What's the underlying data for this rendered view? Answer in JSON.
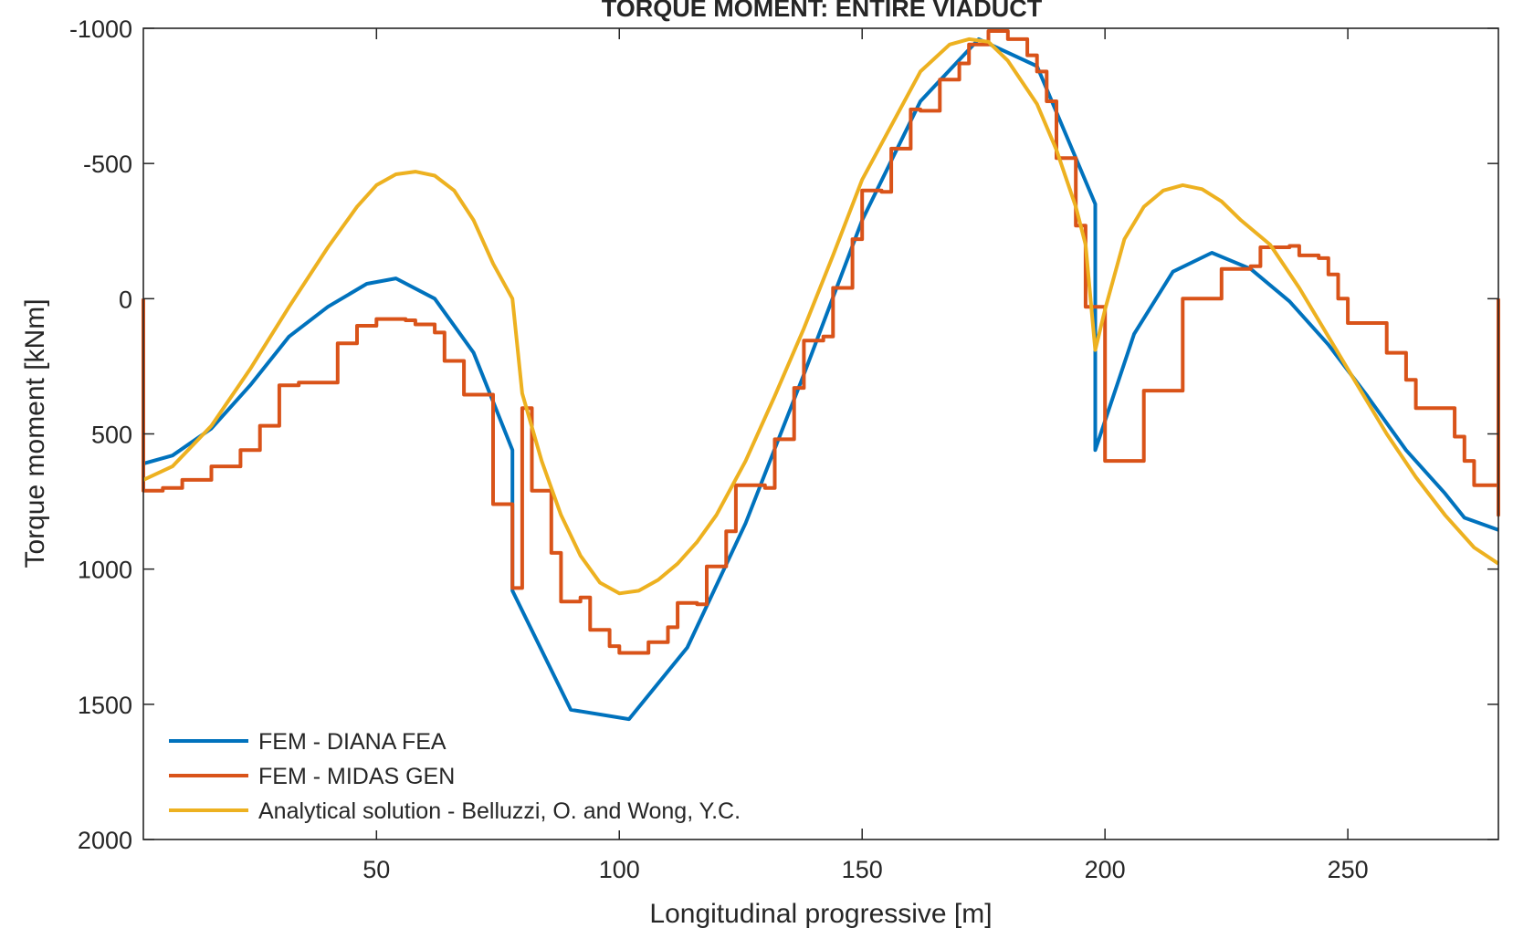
{
  "chart_data": {
    "type": "line",
    "title": "TORQUE MOMENT: ENTIRE VIADUCT",
    "xlabel": "Longitudinal progressive [m]",
    "ylabel": "Torque moment [kNm]",
    "xlim": [
      2,
      281
    ],
    "ylim": [
      2000,
      -1000
    ],
    "y_axis_reversed": true,
    "xticks": [
      50,
      100,
      150,
      200,
      250
    ],
    "yticks": [
      -1000,
      -500,
      0,
      500,
      1000,
      1500,
      2000
    ],
    "grid": false,
    "legend_position": "bottom-left",
    "series": [
      {
        "name": "FEM - DIANA FEA",
        "color": "#0072BD",
        "style": "polyline",
        "points": [
          [
            2,
            610
          ],
          [
            8,
            580
          ],
          [
            16,
            480
          ],
          [
            24,
            320
          ],
          [
            32,
            140
          ],
          [
            40,
            30
          ],
          [
            48,
            -55
          ],
          [
            54,
            -75
          ],
          [
            62,
            0
          ],
          [
            70,
            200
          ],
          [
            78,
            560
          ],
          [
            78,
            1080
          ],
          [
            90,
            1520
          ],
          [
            102,
            1555
          ],
          [
            114,
            1290
          ],
          [
            126,
            830
          ],
          [
            138,
            280
          ],
          [
            150,
            -290
          ],
          [
            162,
            -730
          ],
          [
            174,
            -960
          ],
          [
            186,
            -860
          ],
          [
            198,
            -350
          ],
          [
            198,
            560
          ],
          [
            206,
            130
          ],
          [
            214,
            -100
          ],
          [
            222,
            -170
          ],
          [
            230,
            -110
          ],
          [
            238,
            10
          ],
          [
            246,
            170
          ],
          [
            254,
            360
          ],
          [
            262,
            560
          ],
          [
            270,
            720
          ],
          [
            274,
            810
          ],
          [
            281,
            855
          ]
        ]
      },
      {
        "name": "FEM - MIDAS GEN",
        "color": "#D95319",
        "style": "step",
        "start": [
          2,
          0
        ],
        "steps": [
          [
            2,
            710
          ],
          [
            6,
            700
          ],
          [
            10,
            670
          ],
          [
            16,
            620
          ],
          [
            22,
            560
          ],
          [
            26,
            470
          ],
          [
            30,
            320
          ],
          [
            34,
            310
          ],
          [
            42,
            165
          ],
          [
            46,
            100
          ],
          [
            50,
            75
          ],
          [
            56,
            80
          ],
          [
            58,
            95
          ],
          [
            62,
            125
          ],
          [
            64,
            230
          ],
          [
            68,
            355
          ],
          [
            74,
            760
          ],
          [
            78,
            1070
          ],
          [
            80,
            405
          ],
          [
            82,
            710
          ],
          [
            86,
            940
          ],
          [
            88,
            1120
          ],
          [
            92,
            1105
          ],
          [
            94,
            1225
          ],
          [
            98,
            1285
          ],
          [
            100,
            1310
          ],
          [
            106,
            1270
          ],
          [
            110,
            1215
          ],
          [
            112,
            1125
          ],
          [
            116,
            1130
          ],
          [
            118,
            990
          ],
          [
            122,
            860
          ],
          [
            124,
            690
          ],
          [
            130,
            700
          ],
          [
            132,
            520
          ],
          [
            136,
            330
          ],
          [
            138,
            155
          ],
          [
            142,
            140
          ],
          [
            144,
            -40
          ],
          [
            148,
            -220
          ],
          [
            150,
            -400
          ],
          [
            154,
            -395
          ],
          [
            156,
            -555
          ],
          [
            160,
            -700
          ],
          [
            162,
            -695
          ],
          [
            166,
            -810
          ],
          [
            170,
            -870
          ],
          [
            172,
            -940
          ],
          [
            176,
            -990
          ],
          [
            180,
            -960
          ],
          [
            184,
            -900
          ],
          [
            186,
            -840
          ],
          [
            188,
            -730
          ],
          [
            190,
            -520
          ],
          [
            194,
            -270
          ],
          [
            196,
            30
          ],
          [
            198,
            30
          ],
          [
            200,
            600
          ],
          [
            206,
            600
          ],
          [
            208,
            340
          ],
          [
            214,
            340
          ],
          [
            216,
            0
          ],
          [
            222,
            0
          ],
          [
            224,
            -110
          ],
          [
            230,
            -120
          ],
          [
            232,
            -190
          ],
          [
            238,
            -195
          ],
          [
            240,
            -160
          ],
          [
            244,
            -150
          ],
          [
            246,
            -90
          ],
          [
            248,
            0
          ],
          [
            250,
            90
          ],
          [
            256,
            90
          ],
          [
            258,
            200
          ],
          [
            262,
            300
          ],
          [
            264,
            405
          ],
          [
            270,
            405
          ],
          [
            272,
            510
          ],
          [
            274,
            600
          ],
          [
            276,
            690
          ],
          [
            280,
            690
          ],
          [
            282,
            740
          ],
          [
            286,
            780
          ],
          [
            288,
            800
          ],
          [
            290,
            800
          ]
        ],
        "end": [
          290,
          0
        ]
      },
      {
        "name": "Analytical solution - Belluzzi, O. and Wong, Y.C.",
        "color": "#EDB120",
        "style": "line",
        "points": [
          [
            2,
            670
          ],
          [
            8,
            620
          ],
          [
            16,
            470
          ],
          [
            24,
            260
          ],
          [
            32,
            30
          ],
          [
            40,
            -190
          ],
          [
            46,
            -340
          ],
          [
            50,
            -420
          ],
          [
            54,
            -460
          ],
          [
            58,
            -470
          ],
          [
            62,
            -455
          ],
          [
            66,
            -400
          ],
          [
            70,
            -290
          ],
          [
            74,
            -130
          ],
          [
            78,
            0
          ],
          [
            80,
            350
          ],
          [
            84,
            600
          ],
          [
            88,
            800
          ],
          [
            92,
            950
          ],
          [
            96,
            1050
          ],
          [
            100,
            1090
          ],
          [
            104,
            1080
          ],
          [
            108,
            1040
          ],
          [
            112,
            980
          ],
          [
            116,
            900
          ],
          [
            120,
            800
          ],
          [
            126,
            600
          ],
          [
            132,
            360
          ],
          [
            138,
            110
          ],
          [
            144,
            -160
          ],
          [
            150,
            -440
          ],
          [
            156,
            -640
          ],
          [
            162,
            -840
          ],
          [
            168,
            -940
          ],
          [
            172,
            -960
          ],
          [
            176,
            -950
          ],
          [
            180,
            -880
          ],
          [
            186,
            -720
          ],
          [
            190,
            -550
          ],
          [
            194,
            -340
          ],
          [
            196,
            -200
          ],
          [
            198,
            190
          ],
          [
            200,
            40
          ],
          [
            204,
            -220
          ],
          [
            208,
            -340
          ],
          [
            212,
            -400
          ],
          [
            216,
            -420
          ],
          [
            220,
            -405
          ],
          [
            224,
            -360
          ],
          [
            228,
            -290
          ],
          [
            234,
            -200
          ],
          [
            240,
            -40
          ],
          [
            246,
            140
          ],
          [
            252,
            320
          ],
          [
            258,
            500
          ],
          [
            264,
            660
          ],
          [
            270,
            800
          ],
          [
            276,
            920
          ],
          [
            281,
            980
          ]
        ]
      }
    ]
  }
}
